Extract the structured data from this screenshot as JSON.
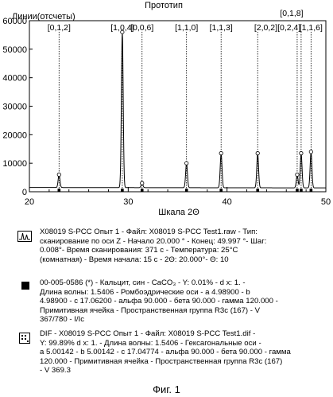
{
  "chart_data": {
    "type": "line",
    "title": "Прототип",
    "ylabel": "Линии(отсчеты)",
    "xlabel": "Шкала 2Θ",
    "xlim": [
      20,
      50
    ],
    "ylim": [
      0,
      60000
    ],
    "x_ticks": [
      "20",
      "30",
      "40",
      "50"
    ],
    "y_ticks": [
      "0",
      "10000",
      "20000",
      "30000",
      "40000",
      "50000",
      "60000"
    ],
    "baseline": 1500,
    "peaks": [
      {
        "x": 23.0,
        "y": 6000,
        "label": "[0,1,2]"
      },
      {
        "x": 29.4,
        "y": 56000,
        "label": "[1,0,4]"
      },
      {
        "x": 31.4,
        "y": 3000,
        "label": "[0,0,6]"
      },
      {
        "x": 35.9,
        "y": 10000,
        "label": "[1,1,0]"
      },
      {
        "x": 39.4,
        "y": 13500,
        "label": "[1,1,3]"
      },
      {
        "x": 43.1,
        "y": 13500,
        "label": "[2,0,2]"
      },
      {
        "x": 47.1,
        "y": 6000,
        "label": "[0,2,4]"
      },
      {
        "x": 47.5,
        "y": 13500,
        "label": "[0,1,8]"
      },
      {
        "x": 48.5,
        "y": 14000,
        "label": "[1,1,6]"
      }
    ],
    "label_groups": [
      {
        "text": "[0,1,2]",
        "peaks": [
          0
        ]
      },
      {
        "text": "[1,0,4]",
        "peaks": [
          1
        ]
      },
      {
        "text": "[0,0,6]",
        "peaks": [
          2
        ]
      },
      {
        "text": "[1,1,0]",
        "peaks": [
          3
        ]
      },
      {
        "text": "[1,1,3]",
        "peaks": [
          4
        ]
      },
      {
        "text": "[2,0,2][0,2,4]",
        "peaks": [
          5,
          6
        ]
      },
      {
        "text": "[0,1,8]",
        "peaks": [
          7
        ]
      },
      {
        "text": "[1,1,6]",
        "peaks": [
          8
        ]
      }
    ]
  },
  "legend": [
    {
      "icon": "peak-icon",
      "text": "X08019 S-PCC Опыт 1 - Файл: X08019 S-PCC Test1.raw - Тип:\nсканирование по оси Z - Начало 20.000 ° - Конец: 49.997 °- Шаг:\n0.008°- Время сканирования: 371 с - Температура: 25°C\n(комнатная) - Время начала: 15 с - 2Θ: 20.000°- Θ: 10"
    },
    {
      "icon": "square-icon",
      "text": "00-005-0586 (*) - Кальцит, син - CaCO₃ - Y: 0.01% - d x: 1. -\nДлина волны: 1.5406 - Ромбоэдрические оси - а 4.98900 - b\n4.98900 - с 17.06200 - альфа 90.000 - бета 90.000 - гамма 120.000 -\nПримитивная ячейка - Пространственная группа R3c (167) - V\n367/780 - I/Ic"
    },
    {
      "icon": "dif-icon",
      "text": "DIF - X08019 S-PCC Опыт 1 - Файл: X08019 S-PCC Test1.dif -\nY: 99.89% d x: 1. - Длина волны: 1.5406 - Гексагональные оси -\nа 5.00142 - b 5.00142 - с 17.04774 - альфа 90.000 - бета 90.000 - гамма\n120.000 - Примитивная ячейка - Пространственная группа R3c (167)\n- V 369.3"
    }
  ],
  "caption": "Фиг. 1"
}
